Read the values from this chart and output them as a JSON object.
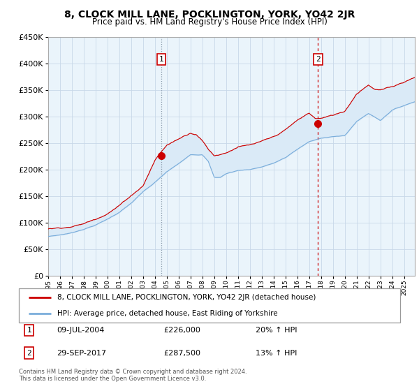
{
  "title": "8, CLOCK MILL LANE, POCKLINGTON, YORK, YO42 2JR",
  "subtitle": "Price paid vs. HM Land Registry's House Price Index (HPI)",
  "red_label": "8, CLOCK MILL LANE, POCKLINGTON, YORK, YO42 2JR (detached house)",
  "blue_label": "HPI: Average price, detached house, East Riding of Yorkshire",
  "annotation1_date": "09-JUL-2004",
  "annotation1_price": 226000,
  "annotation1_text": "20% ↑ HPI",
  "annotation2_date": "29-SEP-2017",
  "annotation2_price": 287500,
  "annotation2_text": "13% ↑ HPI",
  "footer": "Contains HM Land Registry data © Crown copyright and database right 2024.\nThis data is licensed under the Open Government Licence v3.0.",
  "ylim": [
    0,
    450000
  ],
  "red_color": "#cc0000",
  "blue_color": "#7aaddb",
  "fill_color": "#daeaf7",
  "background_color": "#eaf4fb",
  "grid_color": "#c8d8e8",
  "sale1_year": 2004.52,
  "sale2_year": 2017.74
}
